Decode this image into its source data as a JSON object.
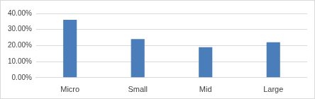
{
  "chart_data": {
    "type": "bar",
    "categories": [
      "Micro",
      "Small",
      "Mid",
      "Large"
    ],
    "values": [
      36,
      24,
      19,
      22
    ],
    "color": "#4a7ebb",
    "ylim": [
      0,
      40
    ],
    "yticks": [
      {
        "value": 0,
        "label": "0.00%"
      },
      {
        "value": 10,
        "label": "10.00%"
      },
      {
        "value": 20,
        "label": "20.00%"
      },
      {
        "value": 30,
        "label": "30.00%"
      },
      {
        "value": 40,
        "label": "40.00%"
      }
    ],
    "grid": true
  }
}
